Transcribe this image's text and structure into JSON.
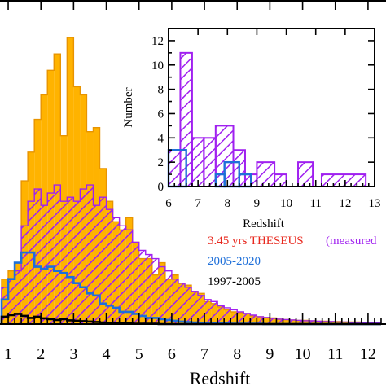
{
  "chart_data": [
    {
      "type": "bar",
      "xlabel": "Redshift",
      "ylabel": "",
      "xlim": [
        0.8,
        12.5
      ],
      "xticks": [
        "1",
        "2",
        "3",
        "4",
        "5",
        "6",
        "7",
        "8",
        "9",
        "10",
        "11",
        "12"
      ],
      "bin_width": 0.2,
      "bin_start": 0.8,
      "series": [
        {
          "name": "3.45 yrs THESEUS (measured",
          "style": "filled",
          "color": "#FFB300",
          "values": [
            110,
            130,
            150,
            350,
            420,
            500,
            560,
            620,
            660,
            460,
            700,
            580,
            560,
            470,
            480,
            380,
            300,
            250,
            230,
            260,
            200,
            160,
            160,
            120,
            150,
            110,
            120,
            100,
            95,
            80,
            75,
            55,
            50,
            42,
            35,
            30,
            28,
            26,
            20,
            18,
            16,
            15,
            12,
            11,
            10,
            9,
            9,
            8,
            7,
            7,
            6,
            6,
            5,
            5,
            5,
            4,
            4,
            3
          ]
        },
        {
          "name": "",
          "style": "hatched",
          "color": "#A020F0",
          "values": [
            90,
            110,
            130,
            240,
            300,
            330,
            290,
            320,
            340,
            300,
            310,
            300,
            330,
            340,
            290,
            310,
            280,
            260,
            240,
            230,
            200,
            180,
            170,
            160,
            140,
            130,
            110,
            100,
            90,
            80,
            70,
            60,
            55,
            45,
            40,
            35,
            30,
            26,
            22,
            18,
            16,
            14,
            12,
            11,
            10,
            9,
            8,
            8,
            7,
            6,
            6,
            5,
            5,
            4,
            4,
            3,
            3,
            3
          ]
        },
        {
          "name": "2005-2020",
          "style": "step",
          "color": "#1E6FD9",
          "values": [
            60,
            110,
            150,
            175,
            175,
            140,
            135,
            140,
            130,
            125,
            115,
            100,
            90,
            75,
            70,
            50,
            45,
            40,
            30,
            30,
            25,
            20,
            15,
            15,
            12,
            10,
            8,
            6,
            5,
            4,
            3,
            3,
            2,
            2,
            2,
            1,
            1,
            1,
            1,
            1,
            0,
            0,
            0,
            0,
            0,
            0,
            0,
            0,
            0,
            0,
            0,
            0,
            0,
            0,
            0,
            0,
            0,
            0
          ]
        },
        {
          "name": "1997-2005",
          "style": "step",
          "color": "#000000",
          "values": [
            18,
            22,
            25,
            20,
            15,
            18,
            14,
            12,
            10,
            12,
            9,
            8,
            7,
            6,
            5,
            4,
            3,
            3,
            2,
            2,
            1,
            1,
            1,
            1,
            0,
            0,
            0,
            0,
            0,
            0,
            0,
            0,
            0,
            0,
            0,
            0,
            0,
            0,
            0,
            0,
            0,
            0,
            0,
            0,
            0,
            0,
            0,
            0,
            0,
            0,
            0,
            0,
            0,
            0,
            0,
            0,
            0,
            0
          ]
        }
      ],
      "ymax": 720
    },
    {
      "type": "bar",
      "xlabel": "Redshift",
      "ylabel": "Number",
      "xlim": [
        6,
        13
      ],
      "ylim": [
        0,
        13
      ],
      "xticks": [
        "6",
        "7",
        "8",
        "9",
        "10",
        "11",
        "12",
        "13"
      ],
      "yticks": [
        "0",
        "2",
        "4",
        "6",
        "8",
        "10",
        "12"
      ],
      "bins": [
        [
          6.0,
          6.4,
          3
        ],
        [
          6.4,
          6.8,
          11
        ],
        [
          6.8,
          7.2,
          4
        ],
        [
          7.2,
          7.6,
          4
        ],
        [
          7.6,
          8.2,
          5
        ],
        [
          8.2,
          8.6,
          3
        ],
        [
          8.6,
          9.0,
          1
        ],
        [
          9.0,
          9.6,
          2
        ],
        [
          9.6,
          10.0,
          1
        ],
        [
          10.0,
          10.4,
          0
        ],
        [
          10.4,
          10.9,
          2
        ],
        [
          10.9,
          11.2,
          0
        ],
        [
          11.2,
          12.7,
          1
        ]
      ],
      "blue_bins": [
        [
          6.0,
          6.6,
          3
        ],
        [
          6.6,
          7.6,
          0
        ],
        [
          7.6,
          7.9,
          1
        ],
        [
          7.9,
          8.4,
          2
        ],
        [
          8.4,
          8.8,
          1
        ]
      ],
      "colors": {
        "hatch": "#A020F0",
        "blue": "#1E6FD9"
      }
    }
  ],
  "legend": [
    {
      "label": "3.45 yrs THESEUS",
      "color": "#E8281E"
    },
    {
      "label": "(measured",
      "color": "#A020F0"
    },
    {
      "label": "2005-2020",
      "color": "#1E6FD9"
    },
    {
      "label": "1997-2005",
      "color": "#000000"
    }
  ]
}
